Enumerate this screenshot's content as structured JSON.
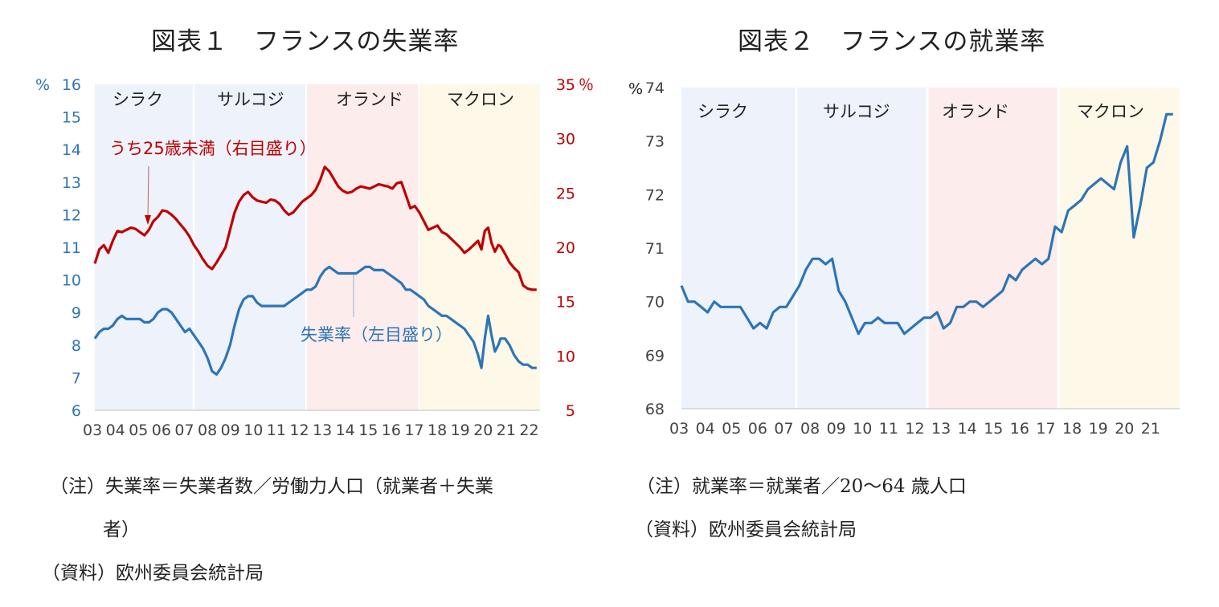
{
  "chart_data": [
    {
      "type": "line",
      "title": "図表１　フランスの失業率",
      "left_axis": {
        "unit": "%",
        "ylim": [
          6,
          16
        ],
        "ticks": [
          "6",
          "7",
          "8",
          "9",
          "10",
          "11",
          "12",
          "13",
          "14",
          "15",
          "16"
        ],
        "color": "#2e75b6"
      },
      "right_axis": {
        "unit": "％",
        "ylim": [
          5,
          35
        ],
        "ticks": [
          "5",
          "10",
          "15",
          "20",
          "25",
          "30",
          "35"
        ],
        "color": "#c00000"
      },
      "x_ticks": [
        "03",
        "04",
        "05",
        "06",
        "07",
        "08",
        "09",
        "10",
        "11",
        "12",
        "13",
        "14",
        "15",
        "16",
        "17",
        "18",
        "19",
        "20",
        "21",
        "22"
      ],
      "eras": [
        {
          "name": "シラク",
          "from": 2003.0,
          "to": 2007.38,
          "color": "#eef2fa"
        },
        {
          "name": "サルコジ",
          "from": 2007.38,
          "to": 2012.38,
          "color": "#eef2fa"
        },
        {
          "name": "オランド",
          "from": 2012.38,
          "to": 2017.38,
          "color": "#fcecec"
        },
        {
          "name": "マクロン",
          "from": 2017.38,
          "to": 2022.75,
          "color": "#fef8e9"
        }
      ],
      "series": [
        {
          "name": "失業率（左目盛り）",
          "axis": "left",
          "color": "#2e75b6",
          "x": [
            2003.0,
            2003.2,
            2003.4,
            2003.6,
            2003.8,
            2004.0,
            2004.2,
            2004.4,
            2004.6,
            2004.8,
            2005.0,
            2005.2,
            2005.4,
            2005.6,
            2005.8,
            2006.0,
            2006.2,
            2006.4,
            2006.6,
            2006.8,
            2007.0,
            2007.2,
            2007.4,
            2007.6,
            2007.8,
            2008.0,
            2008.2,
            2008.4,
            2008.6,
            2008.8,
            2009.0,
            2009.2,
            2009.4,
            2009.6,
            2009.8,
            2010.0,
            2010.2,
            2010.4,
            2010.6,
            2010.8,
            2011.0,
            2011.2,
            2011.4,
            2011.6,
            2011.8,
            2012.0,
            2012.2,
            2012.4,
            2012.6,
            2012.8,
            2013.0,
            2013.2,
            2013.4,
            2013.6,
            2013.8,
            2014.0,
            2014.2,
            2014.4,
            2014.6,
            2014.8,
            2015.0,
            2015.2,
            2015.4,
            2015.6,
            2015.8,
            2016.0,
            2016.2,
            2016.4,
            2016.6,
            2016.8,
            2017.0,
            2017.2,
            2017.4,
            2017.6,
            2017.8,
            2018.0,
            2018.2,
            2018.4,
            2018.6,
            2018.8,
            2019.0,
            2019.2,
            2019.4,
            2019.6,
            2019.8,
            2020.0,
            2020.15,
            2020.3,
            2020.45,
            2020.6,
            2020.75,
            2020.9,
            2021.0,
            2021.2,
            2021.4,
            2021.6,
            2021.8,
            2022.0,
            2022.2,
            2022.4,
            2022.6
          ],
          "values": [
            8.2,
            8.4,
            8.5,
            8.5,
            8.6,
            8.8,
            8.9,
            8.8,
            8.8,
            8.8,
            8.8,
            8.7,
            8.7,
            8.8,
            9.0,
            9.1,
            9.1,
            9.0,
            8.8,
            8.6,
            8.4,
            8.5,
            8.3,
            8.1,
            7.9,
            7.6,
            7.2,
            7.1,
            7.3,
            7.6,
            8.0,
            8.6,
            9.1,
            9.4,
            9.5,
            9.5,
            9.3,
            9.2,
            9.2,
            9.2,
            9.2,
            9.2,
            9.2,
            9.3,
            9.4,
            9.5,
            9.6,
            9.7,
            9.7,
            9.8,
            10.1,
            10.3,
            10.4,
            10.3,
            10.2,
            10.2,
            10.2,
            10.2,
            10.2,
            10.3,
            10.4,
            10.4,
            10.3,
            10.3,
            10.3,
            10.2,
            10.1,
            10.0,
            9.9,
            9.7,
            9.7,
            9.6,
            9.5,
            9.4,
            9.2,
            9.1,
            9.0,
            8.9,
            8.9,
            8.8,
            8.7,
            8.6,
            8.5,
            8.3,
            8.1,
            7.7,
            7.3,
            8.2,
            8.9,
            8.3,
            7.8,
            8.0,
            8.2,
            8.2,
            8.0,
            7.7,
            7.5,
            7.4,
            7.4,
            7.3,
            7.3
          ]
        },
        {
          "name": "うち25歳未満（右目盛り）",
          "axis": "right",
          "color": "#c00000",
          "x": [
            2003.0,
            2003.2,
            2003.4,
            2003.6,
            2003.8,
            2004.0,
            2004.2,
            2004.4,
            2004.6,
            2004.8,
            2005.0,
            2005.2,
            2005.4,
            2005.6,
            2005.8,
            2006.0,
            2006.2,
            2006.4,
            2006.6,
            2006.8,
            2007.0,
            2007.2,
            2007.4,
            2007.6,
            2007.8,
            2008.0,
            2008.2,
            2008.4,
            2008.6,
            2008.8,
            2009.0,
            2009.2,
            2009.4,
            2009.6,
            2009.8,
            2010.0,
            2010.2,
            2010.4,
            2010.6,
            2010.8,
            2011.0,
            2011.2,
            2011.4,
            2011.6,
            2011.8,
            2012.0,
            2012.2,
            2012.4,
            2012.6,
            2012.8,
            2013.0,
            2013.2,
            2013.4,
            2013.6,
            2013.8,
            2014.0,
            2014.2,
            2014.4,
            2014.6,
            2014.8,
            2015.0,
            2015.2,
            2015.4,
            2015.6,
            2015.8,
            2016.0,
            2016.2,
            2016.4,
            2016.6,
            2016.8,
            2017.0,
            2017.2,
            2017.4,
            2017.6,
            2017.8,
            2018.0,
            2018.2,
            2018.4,
            2018.6,
            2018.8,
            2019.0,
            2019.2,
            2019.4,
            2019.6,
            2019.8,
            2020.0,
            2020.15,
            2020.3,
            2020.45,
            2020.6,
            2020.75,
            2020.9,
            2021.0,
            2021.2,
            2021.4,
            2021.6,
            2021.8,
            2022.0,
            2022.2,
            2022.4,
            2022.6
          ],
          "values": [
            18.5,
            19.8,
            20.2,
            19.5,
            20.6,
            21.5,
            21.4,
            21.6,
            21.8,
            21.7,
            21.4,
            21.1,
            21.6,
            22.4,
            22.8,
            23.4,
            23.3,
            23.0,
            22.6,
            22.1,
            21.6,
            21.0,
            20.2,
            19.6,
            18.9,
            18.3,
            18.0,
            18.6,
            19.3,
            20.0,
            21.6,
            23.2,
            24.2,
            24.8,
            25.1,
            24.6,
            24.3,
            24.2,
            24.1,
            24.4,
            24.3,
            24.0,
            23.4,
            23.0,
            23.2,
            23.7,
            24.2,
            24.5,
            24.8,
            25.3,
            26.2,
            27.4,
            27.0,
            26.3,
            25.6,
            25.2,
            25.0,
            25.1,
            25.4,
            25.6,
            25.5,
            25.4,
            25.6,
            25.8,
            25.7,
            25.6,
            25.4,
            25.9,
            26.0,
            24.8,
            23.6,
            23.8,
            23.2,
            22.4,
            21.6,
            21.8,
            22.0,
            21.4,
            21.2,
            20.8,
            20.4,
            20.0,
            19.5,
            19.8,
            20.2,
            20.6,
            19.8,
            21.5,
            21.8,
            20.4,
            19.6,
            20.2,
            20.1,
            19.4,
            18.6,
            18.1,
            17.7,
            16.5,
            16.2,
            16.1,
            16.1
          ]
        }
      ],
      "annotations": [
        "うち25歳未満（右目盛り）",
        "失業率（左目盛り）"
      ]
    },
    {
      "type": "line",
      "title": "図表２　フランスの就業率",
      "axis": {
        "unit": "%",
        "ylim": [
          68,
          74
        ],
        "ticks": [
          "68",
          "69",
          "70",
          "71",
          "72",
          "73",
          "74"
        ]
      },
      "x_ticks": [
        "03",
        "04",
        "05",
        "06",
        "07",
        "08",
        "09",
        "10",
        "11",
        "12",
        "13",
        "14",
        "15",
        "16",
        "17",
        "18",
        "19",
        "20",
        "21"
      ],
      "eras": [
        {
          "name": "シラク",
          "from": 2003.0,
          "to": 2007.38,
          "color": "#eef2fa"
        },
        {
          "name": "サルコジ",
          "from": 2007.38,
          "to": 2012.38,
          "color": "#eef2fa"
        },
        {
          "name": "オランド",
          "from": 2012.38,
          "to": 2017.38,
          "color": "#fcecec"
        },
        {
          "name": "マクロン",
          "from": 2017.38,
          "to": 2022.0,
          "color": "#fef8e9"
        }
      ],
      "series": [
        {
          "name": "就業率",
          "color": "#2e75b6",
          "x": [
            2003.0,
            2003.25,
            2003.5,
            2003.75,
            2004.0,
            2004.25,
            2004.5,
            2004.75,
            2005.0,
            2005.25,
            2005.5,
            2005.75,
            2006.0,
            2006.25,
            2006.5,
            2006.75,
            2007.0,
            2007.25,
            2007.5,
            2007.75,
            2008.0,
            2008.25,
            2008.5,
            2008.75,
            2009.0,
            2009.25,
            2009.5,
            2009.75,
            2010.0,
            2010.25,
            2010.5,
            2010.75,
            2011.0,
            2011.25,
            2011.5,
            2011.75,
            2012.0,
            2012.25,
            2012.5,
            2012.75,
            2013.0,
            2013.25,
            2013.5,
            2013.75,
            2014.0,
            2014.25,
            2014.5,
            2014.75,
            2015.0,
            2015.25,
            2015.5,
            2015.75,
            2016.0,
            2016.25,
            2016.5,
            2016.75,
            2017.0,
            2017.25,
            2017.5,
            2017.75,
            2018.0,
            2018.25,
            2018.5,
            2018.75,
            2019.0,
            2019.25,
            2019.5,
            2019.75,
            2020.0,
            2020.25,
            2020.5,
            2020.75,
            2021.0,
            2021.25,
            2021.5,
            2021.75
          ],
          "values": [
            70.3,
            70.0,
            70.0,
            69.9,
            69.8,
            70.0,
            69.9,
            69.9,
            69.9,
            69.9,
            69.7,
            69.5,
            69.6,
            69.5,
            69.8,
            69.9,
            69.9,
            70.1,
            70.3,
            70.6,
            70.8,
            70.8,
            70.7,
            70.8,
            70.2,
            70.0,
            69.7,
            69.4,
            69.6,
            69.6,
            69.7,
            69.6,
            69.6,
            69.6,
            69.4,
            69.5,
            69.6,
            69.7,
            69.7,
            69.8,
            69.5,
            69.6,
            69.9,
            69.9,
            70.0,
            70.0,
            69.9,
            70.0,
            70.1,
            70.2,
            70.5,
            70.4,
            70.6,
            70.7,
            70.8,
            70.7,
            70.8,
            71.4,
            71.3,
            71.7,
            71.8,
            71.9,
            72.1,
            72.2,
            72.3,
            72.2,
            72.1,
            72.6,
            72.9,
            71.2,
            71.8,
            72.5,
            72.6,
            73.0,
            73.5,
            73.5
          ]
        }
      ]
    }
  ],
  "notes": {
    "left_line1": "（注）失業率＝失業者数／労働力人口（就業者＋失業",
    "left_line2": "者）",
    "left_source": "（資料）欧州委員会統計局",
    "right_line1": "（注）就業率＝就業者／20～64 歳人口",
    "right_source": "（資料）欧州委員会統計局"
  }
}
